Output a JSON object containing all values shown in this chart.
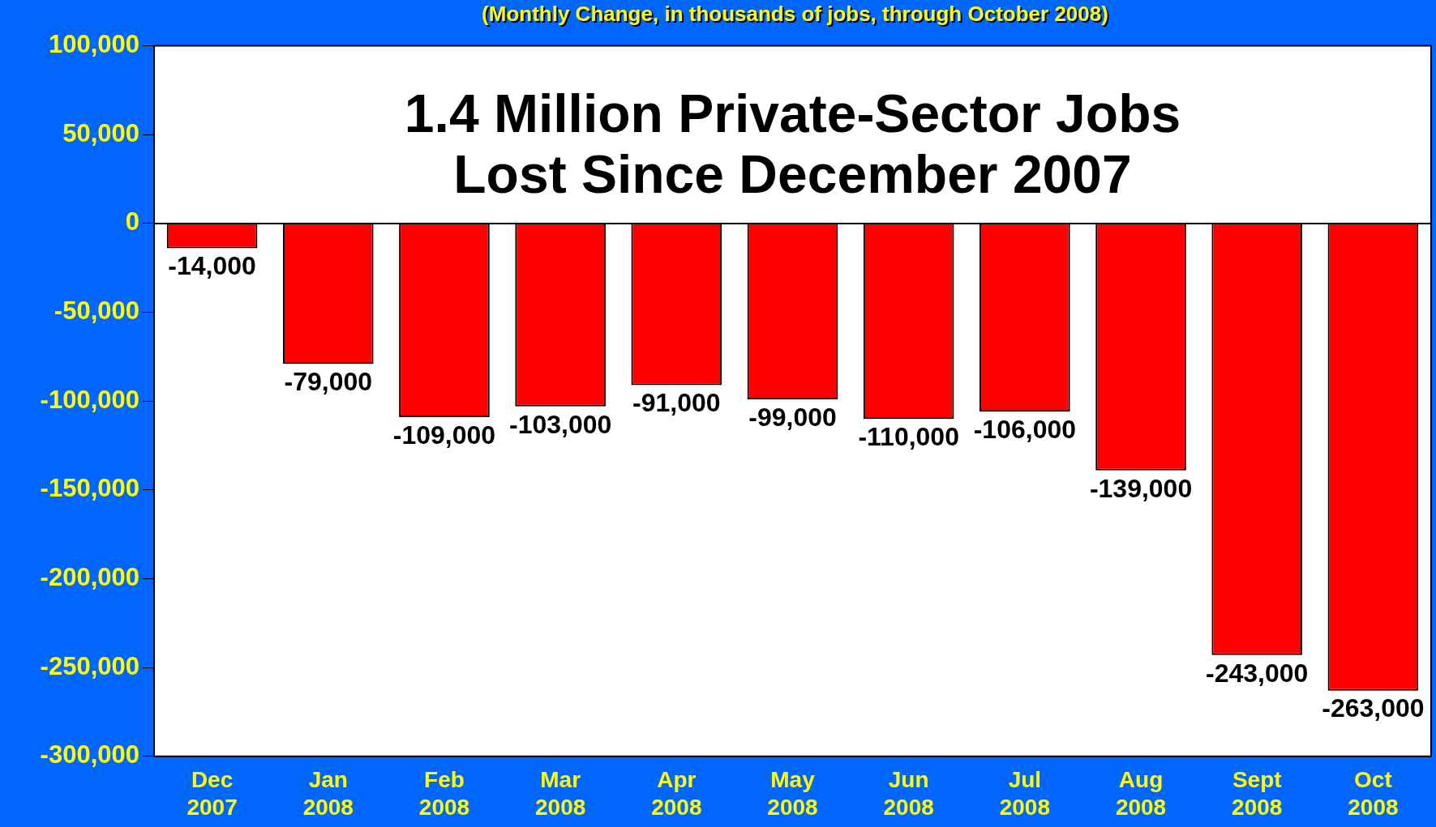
{
  "chart_data": {
    "type": "bar",
    "title": "1.4 Million Private-Sector Jobs\nLost Since December 2007",
    "subtitle": "(Monthly Change, in thousands of jobs, through October 2008)",
    "categories": [
      "Dec 2007",
      "Jan 2008",
      "Feb 2008",
      "Mar 2008",
      "Apr 2008",
      "May 2008",
      "Jun 2008",
      "Jul 2008",
      "Aug 2008",
      "Sept 2008",
      "Oct 2008"
    ],
    "values": [
      -14000,
      -79000,
      -109000,
      -103000,
      -91000,
      -99000,
      -110000,
      -106000,
      -139000,
      -243000,
      -263000
    ],
    "value_labels": [
      "-14,000",
      "-79,000",
      "-109,000",
      "-103,000",
      "-91,000",
      "-99,000",
      "-110,000",
      "-106,000",
      "-139,000",
      "-243,000",
      "-263,000"
    ],
    "color": "#ff0000",
    "ylim": [
      -300000,
      100000
    ],
    "yticks": [
      {
        "value": -300000,
        "label": "-300,000"
      },
      {
        "value": -250000,
        "label": "-250,000"
      },
      {
        "value": -200000,
        "label": "-200,000"
      },
      {
        "value": -150000,
        "label": "-150,000"
      },
      {
        "value": -100000,
        "label": "-100,000"
      },
      {
        "value": -50000,
        "label": "-50,000"
      },
      0,
      {
        "value": 50000,
        "label": "50,000"
      },
      {
        "value": 100000,
        "label": "100,000"
      }
    ],
    "legend": false
  }
}
